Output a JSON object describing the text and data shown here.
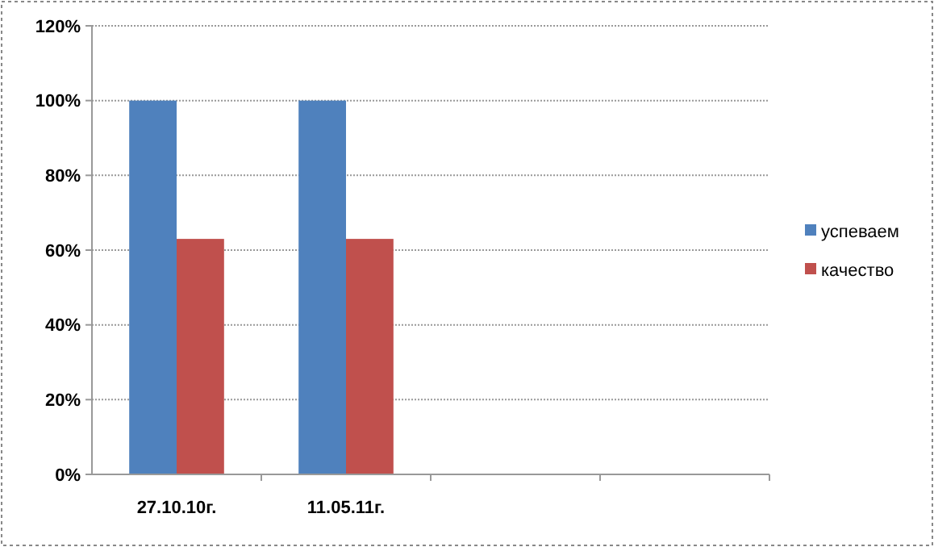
{
  "chart_data": {
    "type": "bar",
    "categories": [
      "27.10.10г.",
      "11.05.11г.",
      null,
      null
    ],
    "series": [
      {
        "name": "успеваем",
        "color": "#4f81bd",
        "values": [
          100,
          100,
          null,
          null
        ]
      },
      {
        "name": "качество",
        "color": "#c0504d",
        "values": [
          63,
          63,
          null,
          null
        ]
      }
    ],
    "ylim": [
      0,
      120
    ],
    "yticks": [
      {
        "value": 0,
        "label": "0%"
      },
      {
        "value": 20,
        "label": "20%"
      },
      {
        "value": 40,
        "label": "40%"
      },
      {
        "value": 60,
        "label": "60%"
      },
      {
        "value": 80,
        "label": "80%"
      },
      {
        "value": 100,
        "label": "100%"
      },
      {
        "value": 120,
        "label": "120%"
      }
    ],
    "grid": "y",
    "legend": "right"
  }
}
